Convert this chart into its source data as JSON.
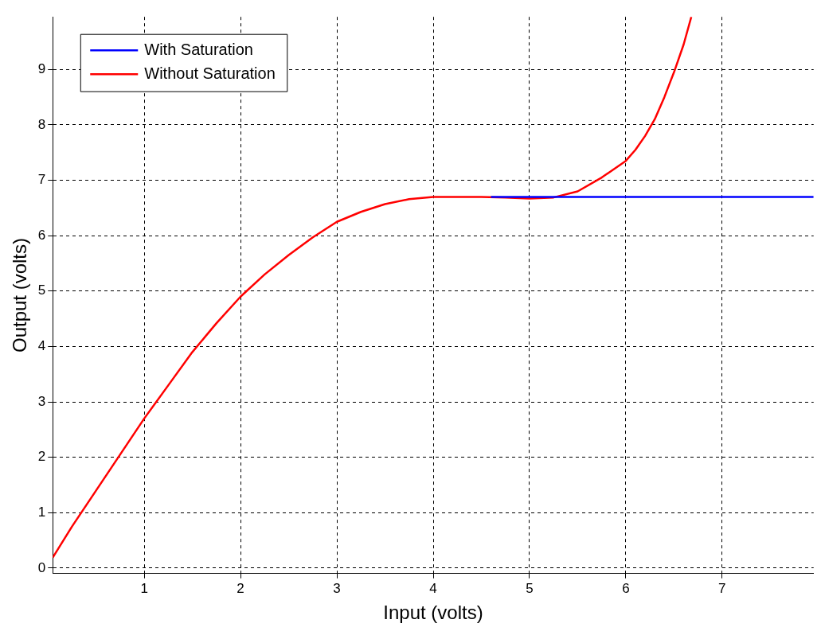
{
  "chart_data": {
    "type": "line",
    "xlabel": "Input (volts)",
    "ylabel": "Output (volts)",
    "xlim": [
      0.05,
      7.95
    ],
    "ylim": [
      -0.1,
      9.95
    ],
    "xticks": [
      1,
      2,
      3,
      4,
      5,
      6,
      7
    ],
    "yticks": [
      0,
      1,
      2,
      3,
      4,
      5,
      6,
      7,
      8,
      9
    ],
    "grid": true,
    "legend": "top left",
    "marker": "none",
    "line_style": "solid",
    "series": [
      {
        "name": "With Saturation",
        "color": "#0000ff",
        "x": [
          4.6,
          7.95
        ],
        "values": [
          6.7,
          6.7
        ]
      },
      {
        "name": "Without Saturation",
        "color": "#ff0000",
        "x": [
          0.05,
          0.25,
          0.5,
          0.75,
          1,
          1.25,
          1.5,
          1.75,
          2,
          2.25,
          2.5,
          2.75,
          3,
          3.25,
          3.5,
          3.75,
          4,
          4.25,
          4.5,
          4.75,
          5,
          5.25,
          5.5,
          5.75,
          6,
          6.1,
          6.2,
          6.3,
          6.4,
          6.5,
          6.6,
          6.68
        ],
        "values": [
          0.19,
          0.75,
          1.4,
          2.05,
          2.7,
          3.3,
          3.9,
          4.42,
          4.9,
          5.3,
          5.65,
          5.97,
          6.25,
          6.43,
          6.57,
          6.66,
          6.7,
          6.7,
          6.7,
          6.69,
          6.67,
          6.69,
          6.8,
          7.05,
          7.35,
          7.55,
          7.8,
          8.1,
          8.5,
          8.95,
          9.45,
          9.95
        ]
      }
    ]
  }
}
